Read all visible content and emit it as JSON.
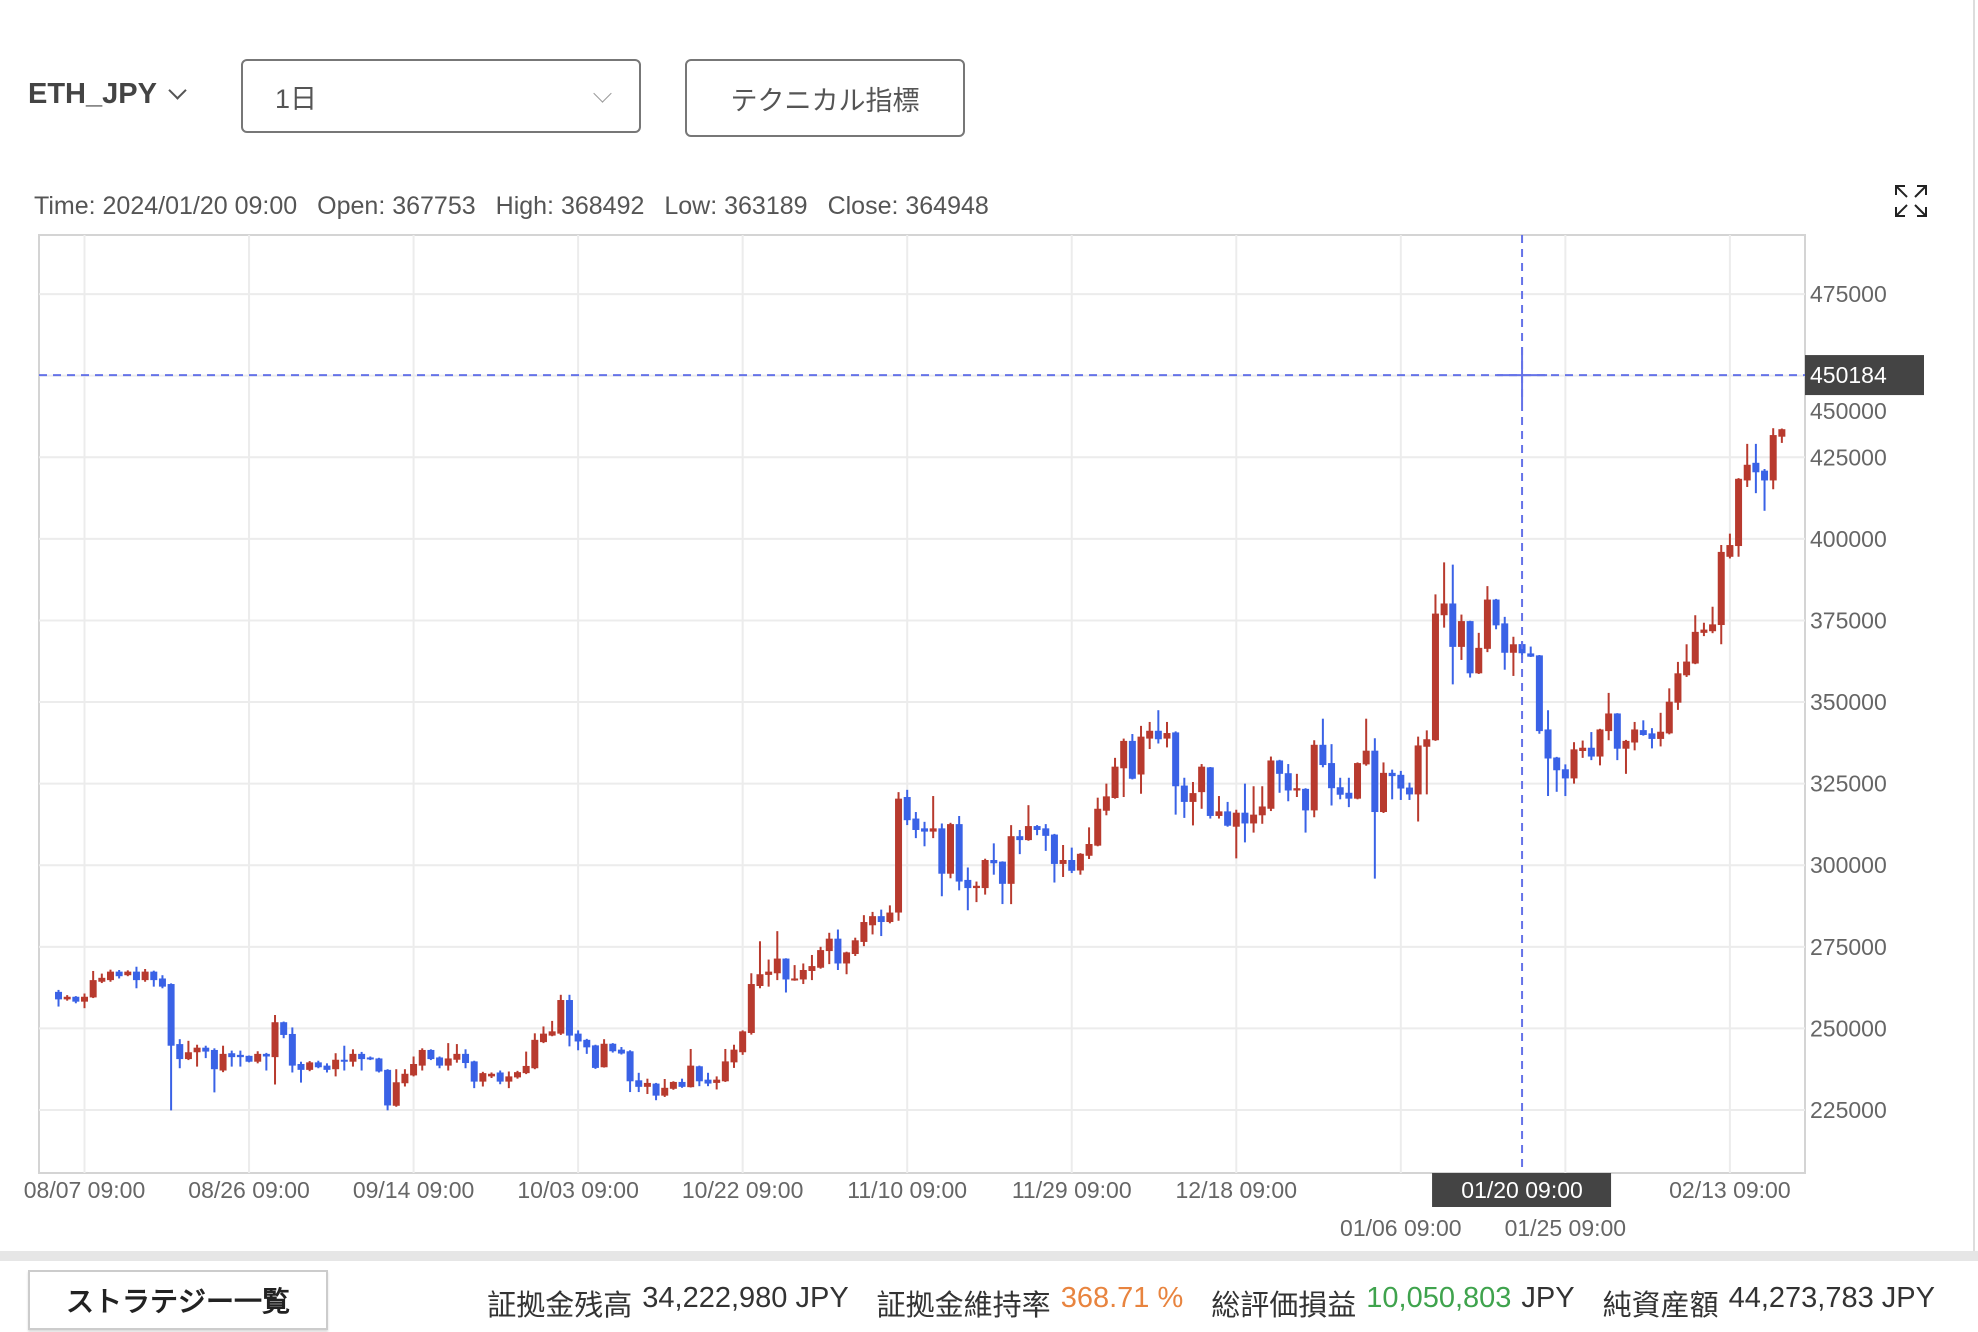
{
  "header": {
    "symbol": "ETH_JPY",
    "interval": "1日",
    "technical_button": "テクニカル指標"
  },
  "ohlc_readout": {
    "time": "Time: 2024/01/20 09:00",
    "open": "Open: 367753",
    "high": "High: 368492",
    "low": "Low: 363189",
    "close": "Close: 364948"
  },
  "colors": {
    "up": "#b83a2e",
    "down": "#3a62e6",
    "crosshair": "#6573e8",
    "grid": "#ececec",
    "margin_rate": "#e8843f",
    "pnl": "#3fa34d"
  },
  "icons": {
    "symbol_dropdown": "chevron-down-icon",
    "interval_dropdown": "chevron-down-icon",
    "expand": "expand-icon"
  },
  "chart_data": {
    "type": "candlestick",
    "y_ticks": [
      "475000",
      "450000",
      "425000",
      "400000",
      "375000",
      "350000",
      "325000",
      "300000",
      "275000",
      "250000",
      "225000"
    ],
    "ylim": [
      205700,
      493100
    ],
    "x_ticks": [
      "08/07 09:00",
      "08/26 09:00",
      "09/14 09:00",
      "10/03 09:00",
      "10/22 09:00",
      "11/10 09:00",
      "11/29 09:00",
      "12/18 09:00",
      "01/06 09:00",
      "01/25 09:00",
      "02/13 09:00"
    ],
    "grid": true,
    "crosshair": {
      "price_label": "450184",
      "time_label": "01/20 09:00",
      "price": 450184
    },
    "first_time": "2023/08/04 09:00",
    "interval_days": 1,
    "ohlc_fields": [
      "open",
      "high",
      "low",
      "close"
    ],
    "ohlc": [
      [
        261200,
        261800,
        256700,
        258900
      ],
      [
        258900,
        260200,
        258500,
        259700
      ],
      [
        259700,
        259900,
        257700,
        258200
      ],
      [
        258200,
        260700,
        256200,
        259700
      ],
      [
        259500,
        267600,
        259300,
        264800
      ],
      [
        264300,
        266800,
        263900,
        265500
      ],
      [
        264800,
        268000,
        264300,
        267400
      ],
      [
        267400,
        267900,
        265300,
        266000
      ],
      [
        266300,
        267800,
        266000,
        267400
      ],
      [
        267400,
        268900,
        262300,
        264800
      ],
      [
        264800,
        268200,
        264300,
        267400
      ],
      [
        267400,
        267700,
        262800,
        264800
      ],
      [
        265300,
        266300,
        262300,
        262800
      ],
      [
        263600,
        263800,
        224900,
        244700
      ],
      [
        245200,
        246700,
        237800,
        240600
      ],
      [
        240600,
        246200,
        240300,
        242700
      ],
      [
        242700,
        245000,
        238300,
        244100
      ],
      [
        244100,
        244700,
        240900,
        242900
      ],
      [
        243400,
        243900,
        230400,
        237500
      ],
      [
        237100,
        244700,
        236600,
        242200
      ],
      [
        242400,
        243200,
        238300,
        241200
      ],
      [
        241900,
        243200,
        238300,
        241200
      ],
      [
        241600,
        241700,
        239600,
        239800
      ],
      [
        239800,
        243000,
        239300,
        242200
      ],
      [
        242200,
        242500,
        237100,
        241400
      ],
      [
        241200,
        254100,
        232800,
        251900
      ],
      [
        251900,
        252100,
        247000,
        248000
      ],
      [
        248300,
        250300,
        236500,
        238600
      ],
      [
        239100,
        239800,
        233400,
        237300
      ],
      [
        237300,
        240000,
        236900,
        239600
      ],
      [
        239600,
        240100,
        237800,
        238100
      ],
      [
        238600,
        239300,
        236500,
        237300
      ],
      [
        237500,
        242400,
        235300,
        240400
      ],
      [
        240400,
        244700,
        237100,
        240100
      ],
      [
        239800,
        243600,
        238300,
        242200
      ],
      [
        242200,
        242800,
        237100,
        240600
      ],
      [
        241100,
        241400,
        240300,
        240600
      ],
      [
        240800,
        241000,
        236500,
        236800
      ],
      [
        237300,
        237500,
        224900,
        226400
      ],
      [
        226300,
        237500,
        226000,
        233500
      ],
      [
        233200,
        237500,
        232200,
        236100
      ],
      [
        235600,
        241400,
        235300,
        239100
      ],
      [
        238600,
        243900,
        237100,
        243400
      ],
      [
        243400,
        243600,
        240300,
        240600
      ],
      [
        241100,
        241400,
        237800,
        238600
      ],
      [
        238600,
        245500,
        237100,
        240800
      ],
      [
        240400,
        245200,
        239500,
        242200
      ],
      [
        242200,
        243600,
        237800,
        239400
      ],
      [
        239900,
        240100,
        231700,
        233700
      ],
      [
        233700,
        236700,
        232200,
        236300
      ],
      [
        235300,
        236500,
        234800,
        236100
      ],
      [
        236500,
        237100,
        232900,
        233700
      ],
      [
        233700,
        236800,
        231700,
        235300
      ],
      [
        235000,
        237000,
        234600,
        236600
      ],
      [
        236300,
        242900,
        236000,
        238500
      ],
      [
        237800,
        248500,
        237500,
        246500
      ],
      [
        245800,
        250600,
        245500,
        248400
      ],
      [
        247800,
        252300,
        247600,
        249100
      ],
      [
        248400,
        260300,
        248000,
        258700
      ],
      [
        258700,
        260300,
        244500,
        247800
      ],
      [
        248400,
        249400,
        243300,
        246000
      ],
      [
        246500,
        246800,
        242200,
        244200
      ],
      [
        244800,
        245000,
        237600,
        237900
      ],
      [
        238100,
        246700,
        238000,
        245300
      ],
      [
        245300,
        245500,
        242600,
        243000
      ],
      [
        243500,
        244300,
        242000,
        242300
      ],
      [
        243000,
        243300,
        230500,
        233800
      ],
      [
        234100,
        236400,
        230500,
        232100
      ],
      [
        232100,
        234600,
        229900,
        233300
      ],
      [
        233100,
        233300,
        228000,
        229400
      ],
      [
        229400,
        234500,
        229000,
        231800
      ],
      [
        231500,
        233800,
        231200,
        233600
      ],
      [
        233600,
        234600,
        231800,
        232100
      ],
      [
        232000,
        243700,
        231900,
        238600
      ],
      [
        238400,
        238600,
        232300,
        233800
      ],
      [
        234300,
        236400,
        232300,
        233100
      ],
      [
        233300,
        235300,
        231300,
        234300
      ],
      [
        233800,
        243700,
        233600,
        239900
      ],
      [
        239600,
        245000,
        237900,
        243500
      ],
      [
        242700,
        249400,
        241900,
        249100
      ],
      [
        248600,
        266900,
        248100,
        263600
      ],
      [
        263000,
        276700,
        262300,
        266600
      ],
      [
        266400,
        271100,
        262800,
        267400
      ],
      [
        266900,
        279800,
        264800,
        271400
      ],
      [
        271400,
        271500,
        261000,
        265000
      ],
      [
        264800,
        269400,
        264600,
        265300
      ],
      [
        265000,
        269900,
        263600,
        267900
      ],
      [
        267600,
        272500,
        264800,
        269100
      ],
      [
        268600,
        275000,
        268300,
        274000
      ],
      [
        273700,
        279300,
        269700,
        277500
      ],
      [
        277500,
        280300,
        267900,
        269900
      ],
      [
        269900,
        273500,
        266600,
        273300
      ],
      [
        272800,
        277800,
        272200,
        277000
      ],
      [
        276500,
        284700,
        275200,
        282600
      ],
      [
        281600,
        285700,
        278800,
        284400
      ],
      [
        284400,
        286400,
        278300,
        282600
      ],
      [
        282600,
        287700,
        282200,
        285500
      ],
      [
        285500,
        322400,
        283000,
        320400
      ],
      [
        320900,
        323100,
        312300,
        313800
      ],
      [
        314300,
        316300,
        308300,
        310800
      ],
      [
        311300,
        313300,
        305800,
        310300
      ],
      [
        310300,
        321200,
        308300,
        311300
      ],
      [
        311300,
        312800,
        290500,
        297400
      ],
      [
        297400,
        313000,
        296000,
        312600
      ],
      [
        312600,
        315100,
        292300,
        295000
      ],
      [
        295500,
        299300,
        286200,
        293000
      ],
      [
        293000,
        295000,
        288700,
        293700
      ],
      [
        293000,
        302000,
        291000,
        301600
      ],
      [
        301600,
        306700,
        297100,
        300600
      ],
      [
        301100,
        301200,
        288100,
        294300
      ],
      [
        294300,
        312300,
        288100,
        308900
      ],
      [
        308900,
        310800,
        303400,
        307700
      ],
      [
        307700,
        318400,
        307500,
        312000
      ],
      [
        312000,
        312300,
        309200,
        310800
      ],
      [
        311300,
        312600,
        304400,
        309000
      ],
      [
        309400,
        309600,
        294700,
        300400
      ],
      [
        300400,
        306200,
        296400,
        301600
      ],
      [
        301600,
        305400,
        297600,
        298300
      ],
      [
        298400,
        303700,
        297100,
        303500
      ],
      [
        302900,
        311600,
        301900,
        306500
      ],
      [
        306000,
        320700,
        305800,
        317300
      ],
      [
        316700,
        325000,
        315300,
        321100
      ],
      [
        320600,
        332900,
        320400,
        330200
      ],
      [
        329700,
        338800,
        320900,
        338100
      ],
      [
        338100,
        340200,
        326300,
        326500
      ],
      [
        327800,
        342700,
        321900,
        339400
      ],
      [
        338800,
        343900,
        335600,
        341200
      ],
      [
        341200,
        347500,
        337300,
        338600
      ],
      [
        338800,
        343900,
        336100,
        340500
      ],
      [
        340700,
        341000,
        315500,
        324200
      ],
      [
        324400,
        326800,
        314500,
        319400
      ],
      [
        319400,
        325500,
        312200,
        322100
      ],
      [
        322400,
        331000,
        317300,
        330200
      ],
      [
        330000,
        330100,
        314300,
        315100
      ],
      [
        315100,
        321200,
        314300,
        316500
      ],
      [
        316500,
        319400,
        311800,
        312100
      ],
      [
        311800,
        317000,
        302100,
        316100
      ],
      [
        316100,
        325000,
        307000,
        312800
      ],
      [
        312800,
        324200,
        310000,
        315500
      ],
      [
        315300,
        324200,
        312700,
        318000
      ],
      [
        317300,
        333300,
        316600,
        332100
      ],
      [
        332100,
        332300,
        322200,
        328000
      ],
      [
        328200,
        331000,
        319600,
        322900
      ],
      [
        322900,
        328000,
        320900,
        323600
      ],
      [
        323400,
        323600,
        310000,
        316800
      ],
      [
        316800,
        338300,
        314700,
        336900
      ],
      [
        336900,
        344900,
        330000,
        330700
      ],
      [
        331300,
        337100,
        318300,
        323600
      ],
      [
        323900,
        326800,
        320200,
        321600
      ],
      [
        322200,
        326800,
        317800,
        320400
      ],
      [
        320400,
        331500,
        320200,
        331300
      ],
      [
        330900,
        344900,
        330500,
        335100
      ],
      [
        335100,
        338900,
        295900,
        316300
      ],
      [
        316300,
        331500,
        316000,
        328300
      ],
      [
        328300,
        329300,
        320200,
        327300
      ],
      [
        327700,
        328900,
        320000,
        323500
      ],
      [
        323800,
        325300,
        320000,
        321700
      ],
      [
        321700,
        339400,
        313400,
        336700
      ],
      [
        336300,
        341300,
        321700,
        338600
      ],
      [
        338300,
        383000,
        338100,
        377100
      ],
      [
        376600,
        392800,
        372800,
        380200
      ],
      [
        380200,
        392100,
        355400,
        366900
      ],
      [
        366900,
        376800,
        362900,
        374800
      ],
      [
        374800,
        374900,
        357500,
        358800
      ],
      [
        358800,
        371200,
        358600,
        366600
      ],
      [
        366300,
        385500,
        365300,
        381400
      ],
      [
        381400,
        381600,
        372300,
        373500
      ],
      [
        374100,
        376100,
        359900,
        365100
      ],
      [
        365100,
        370000,
        358000,
        367700
      ],
      [
        367753,
        368492,
        363189,
        364948
      ],
      [
        364900,
        367000,
        363800,
        363900
      ],
      [
        364300,
        364400,
        340300,
        341100
      ],
      [
        341600,
        347500,
        321200,
        332700
      ],
      [
        333000,
        333200,
        322500,
        329100
      ],
      [
        329400,
        330900,
        321200,
        326600
      ],
      [
        326600,
        337700,
        325000,
        335500
      ],
      [
        335000,
        338200,
        332900,
        336000
      ],
      [
        336000,
        340800,
        332200,
        333300
      ],
      [
        333300,
        341800,
        330600,
        341600
      ],
      [
        341100,
        352800,
        338300,
        346500
      ],
      [
        346500,
        346600,
        332200,
        335700
      ],
      [
        335700,
        338400,
        328000,
        338100
      ],
      [
        337600,
        343900,
        335200,
        341600
      ],
      [
        341400,
        344400,
        339700,
        339900
      ],
      [
        340400,
        342000,
        335800,
        338700
      ],
      [
        338700,
        346700,
        336400,
        340900
      ],
      [
        340400,
        354200,
        340100,
        350100
      ],
      [
        349800,
        362300,
        347600,
        358800
      ],
      [
        358200,
        367700,
        357700,
        362400
      ],
      [
        361800,
        376600,
        361600,
        371500
      ],
      [
        371200,
        374300,
        370200,
        372200
      ],
      [
        371700,
        379200,
        371100,
        373800
      ],
      [
        373600,
        398100,
        367700,
        396000
      ],
      [
        394500,
        401600,
        394000,
        398100
      ],
      [
        397800,
        418600,
        394500,
        418400
      ],
      [
        417900,
        429100,
        415900,
        422700
      ],
      [
        423300,
        429100,
        414000,
        420400
      ],
      [
        420900,
        421400,
        408600,
        417900
      ],
      [
        417900,
        433900,
        415200,
        431800
      ],
      [
        431300,
        433800,
        429400,
        433600
      ]
    ]
  },
  "footer": {
    "strategy_button": "ストラテジー一覧",
    "margin_balance_label": "証拠金残高",
    "margin_balance_value": "34,222,980 JPY",
    "margin_rate_label": "証拠金維持率",
    "margin_rate_value": "368.71 %",
    "pnl_label": "総評価損益",
    "pnl_value": "10,050,803",
    "pnl_unit": "JPY",
    "net_assets_label": "純資産額",
    "net_assets_value": "44,273,783 JPY"
  }
}
